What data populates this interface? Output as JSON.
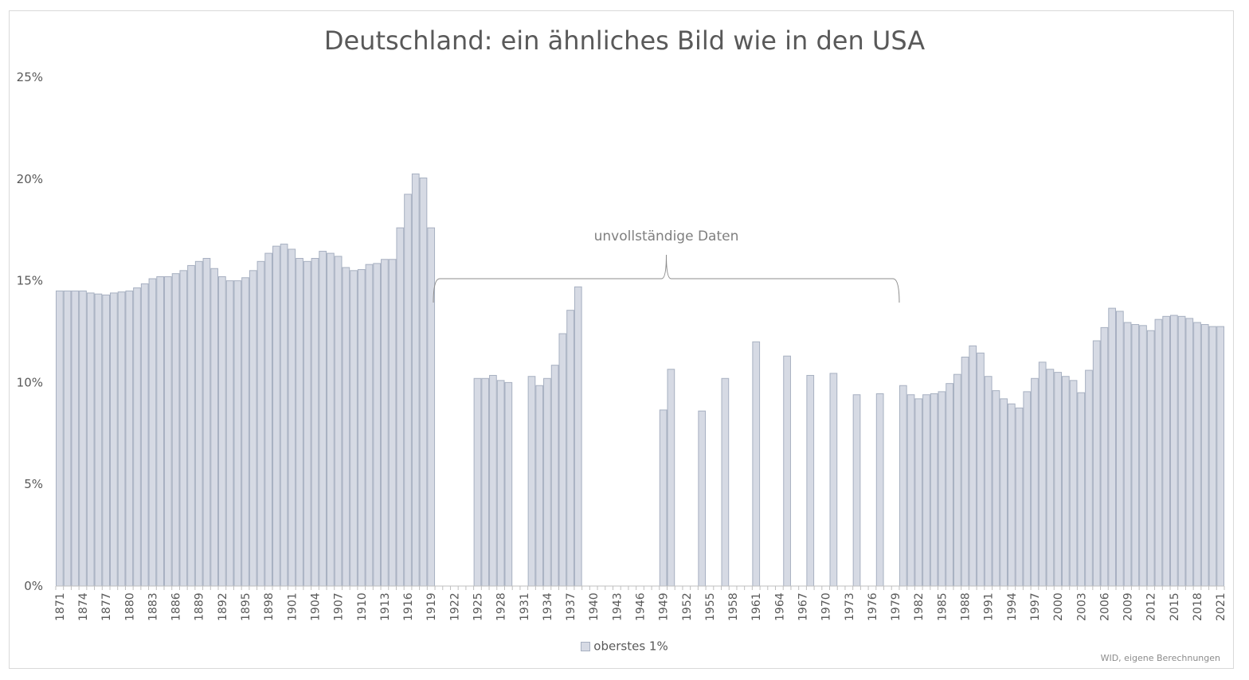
{
  "title": "Deutschland: ein ähnliches Bild wie in den USA",
  "source": "WID, eigene Berechnungen",
  "annotation": "unvollständige Daten",
  "colors": {
    "bar_fill": "#d6dae4",
    "bar_stroke": "#a7b0c1",
    "text": "#595959",
    "axis": "#bfbfbf"
  },
  "chart_data": {
    "type": "bar",
    "title": "Deutschland: ein ähnliches Bild wie in den USA",
    "xlabel": "",
    "ylabel": "",
    "ylim": [
      0,
      25
    ],
    "yticks": [
      "0%",
      "5%",
      "10%",
      "15%",
      "20%",
      "25%"
    ],
    "xticks": [
      "1871",
      "1874",
      "1877",
      "1880",
      "1883",
      "1886",
      "1889",
      "1892",
      "1895",
      "1898",
      "1901",
      "1904",
      "1907",
      "1910",
      "1913",
      "1916",
      "1919",
      "1922",
      "1925",
      "1928",
      "1931",
      "1934",
      "1937",
      "1940",
      "1943",
      "1946",
      "1949",
      "1952",
      "1955",
      "1958",
      "1961",
      "1964",
      "1967",
      "1970",
      "1973",
      "1976",
      "1979",
      "1982",
      "1985",
      "1988",
      "1991",
      "1994",
      "1997",
      "2000",
      "2003",
      "2006",
      "2009",
      "2012",
      "2015",
      "2018",
      "2021"
    ],
    "legend": "bottom",
    "grid": false,
    "series": [
      {
        "name": "oberstes 1%",
        "x": [
          1871,
          1872,
          1873,
          1874,
          1875,
          1876,
          1877,
          1878,
          1879,
          1880,
          1881,
          1882,
          1883,
          1884,
          1885,
          1886,
          1887,
          1888,
          1889,
          1890,
          1891,
          1892,
          1893,
          1894,
          1895,
          1896,
          1897,
          1898,
          1899,
          1900,
          1901,
          1902,
          1903,
          1904,
          1905,
          1906,
          1907,
          1908,
          1909,
          1910,
          1911,
          1912,
          1913,
          1914,
          1915,
          1916,
          1917,
          1918,
          1919,
          1920,
          1921,
          1922,
          1923,
          1924,
          1925,
          1926,
          1927,
          1928,
          1929,
          1930,
          1931,
          1932,
          1933,
          1934,
          1935,
          1936,
          1937,
          1938,
          1939,
          1940,
          1941,
          1942,
          1943,
          1944,
          1945,
          1946,
          1947,
          1948,
          1949,
          1950,
          1951,
          1952,
          1953,
          1954,
          1955,
          1956,
          1957,
          1958,
          1959,
          1960,
          1961,
          1962,
          1963,
          1964,
          1965,
          1966,
          1967,
          1968,
          1969,
          1970,
          1971,
          1972,
          1973,
          1974,
          1975,
          1976,
          1977,
          1978,
          1979,
          1980,
          1981,
          1982,
          1983,
          1984,
          1985,
          1986,
          1987,
          1988,
          1989,
          1990,
          1991,
          1992,
          1993,
          1994,
          1995,
          1996,
          1997,
          1998,
          1999,
          2000,
          2001,
          2002,
          2003,
          2004,
          2005,
          2006,
          2007,
          2008,
          2009,
          2010,
          2011,
          2012,
          2013,
          2014,
          2015,
          2016,
          2017,
          2018,
          2019,
          2020,
          2021
        ],
        "values": [
          14.5,
          14.5,
          14.5,
          14.5,
          14.4,
          14.35,
          14.3,
          14.4,
          14.45,
          14.5,
          14.65,
          14.85,
          15.1,
          15.2,
          15.2,
          15.35,
          15.5,
          15.75,
          15.95,
          16.1,
          15.6,
          15.2,
          15.0,
          15.0,
          15.15,
          15.5,
          15.95,
          16.35,
          16.7,
          16.8,
          16.55,
          16.1,
          15.95,
          16.1,
          16.45,
          16.35,
          16.2,
          15.65,
          15.5,
          15.55,
          15.8,
          15.85,
          16.05,
          16.05,
          17.6,
          19.25,
          20.25,
          20.05,
          17.6,
          null,
          null,
          null,
          null,
          null,
          10.2,
          10.2,
          10.35,
          10.1,
          10.0,
          null,
          null,
          10.3,
          9.85,
          10.2,
          10.85,
          12.4,
          13.55,
          14.7,
          null,
          null,
          null,
          null,
          null,
          null,
          null,
          null,
          null,
          null,
          8.65,
          10.65,
          null,
          null,
          null,
          8.6,
          null,
          null,
          10.2,
          null,
          null,
          null,
          12.0,
          null,
          null,
          null,
          11.3,
          null,
          null,
          10.35,
          null,
          null,
          10.45,
          null,
          null,
          9.4,
          null,
          null,
          9.45,
          null,
          null,
          9.85,
          9.4,
          9.2,
          9.4,
          9.45,
          9.55,
          9.95,
          10.4,
          11.25,
          11.8,
          11.45,
          10.3,
          9.6,
          9.2,
          8.95,
          8.75,
          9.55,
          10.2,
          11.0,
          10.65,
          10.5,
          10.3,
          10.1,
          9.5,
          10.6,
          12.05,
          12.7,
          13.65,
          13.5,
          12.95,
          12.85,
          12.8,
          12.55,
          13.1,
          13.25,
          13.3,
          13.25,
          13.15,
          12.95,
          12.85,
          12.75,
          12.75
        ]
      }
    ]
  }
}
